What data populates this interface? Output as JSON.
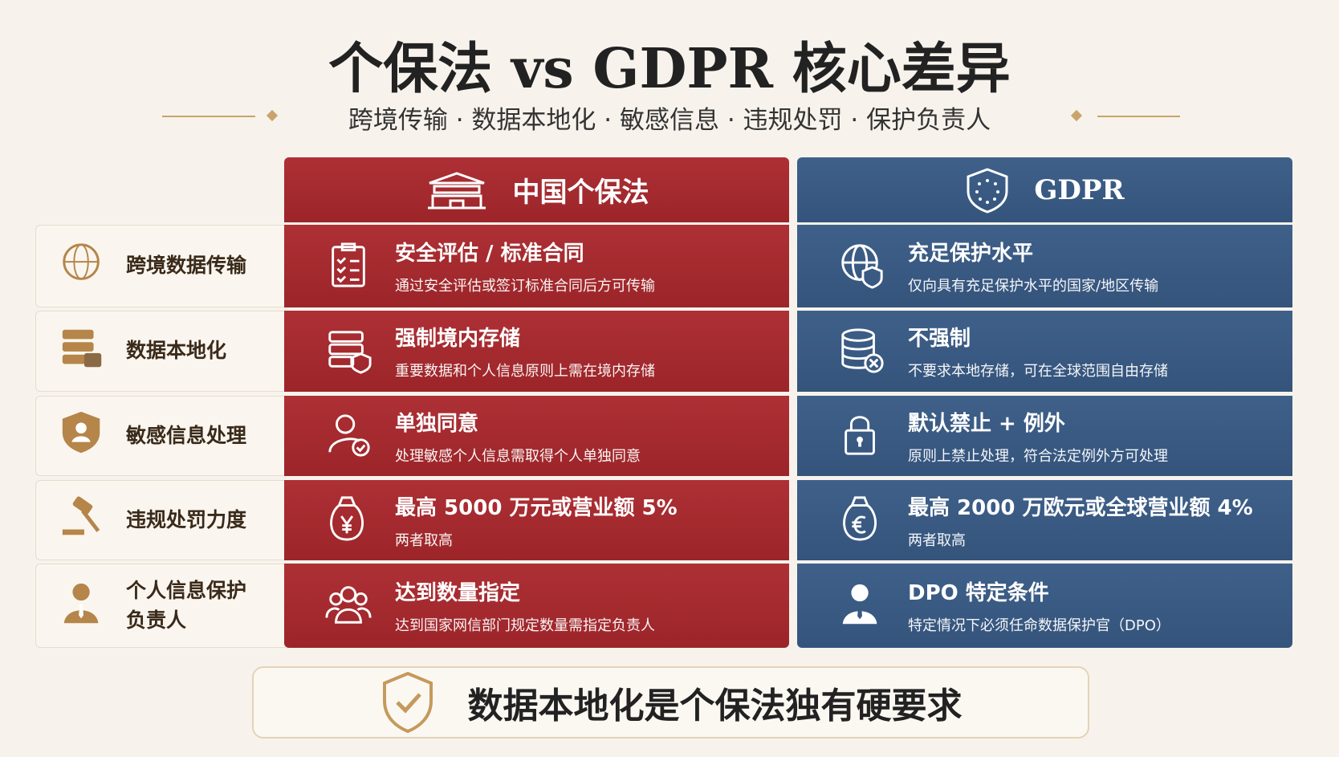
{
  "header": {
    "title": "个保法 vs GDPR 核心差异",
    "subtitle": "跨境传输 · 数据本地化 · 敏感信息 · 违规处罚 · 保护负责人"
  },
  "columns": {
    "china": "中国个保法",
    "gdpr": "GDPR"
  },
  "rows": [
    {
      "label": "跨境数据传输",
      "china": {
        "title": "安全评估 / 标准合同",
        "desc": "通过安全评估或签订标准合同后方可传输"
      },
      "gdpr": {
        "title": "充足保护水平",
        "desc": "仅向具有充足保护水平的国家/地区传输"
      }
    },
    {
      "label": "数据本地化",
      "china": {
        "title": "强制境内存储",
        "desc": "重要数据和个人信息原则上需在境内存储"
      },
      "gdpr": {
        "title": "不强制",
        "desc": "不要求本地存储，可在全球范围自由存储"
      }
    },
    {
      "label": "敏感信息处理",
      "china": {
        "title": "单独同意",
        "desc": "处理敏感个人信息需取得个人单独同意"
      },
      "gdpr": {
        "title": "默认禁止 + 例外",
        "desc": "原则上禁止处理，符合法定例外方可处理"
      }
    },
    {
      "label": "违规处罚力度",
      "china": {
        "title": "最高 5000 万元或营业额 5%",
        "desc": "两者取高"
      },
      "gdpr": {
        "title": "最高 2000 万欧元或全球营业额 4%",
        "desc": "两者取高"
      }
    },
    {
      "label": "个人信息保护负责人",
      "china": {
        "title": "达到数量指定",
        "desc": "达到国家网信部门规定数量需指定负责人"
      },
      "gdpr": {
        "title": "DPO 特定条件",
        "desc": "特定情况下必须任命数据保护官（DPO）"
      }
    }
  ],
  "footer": "数据本地化是个保法独有硬要求"
}
